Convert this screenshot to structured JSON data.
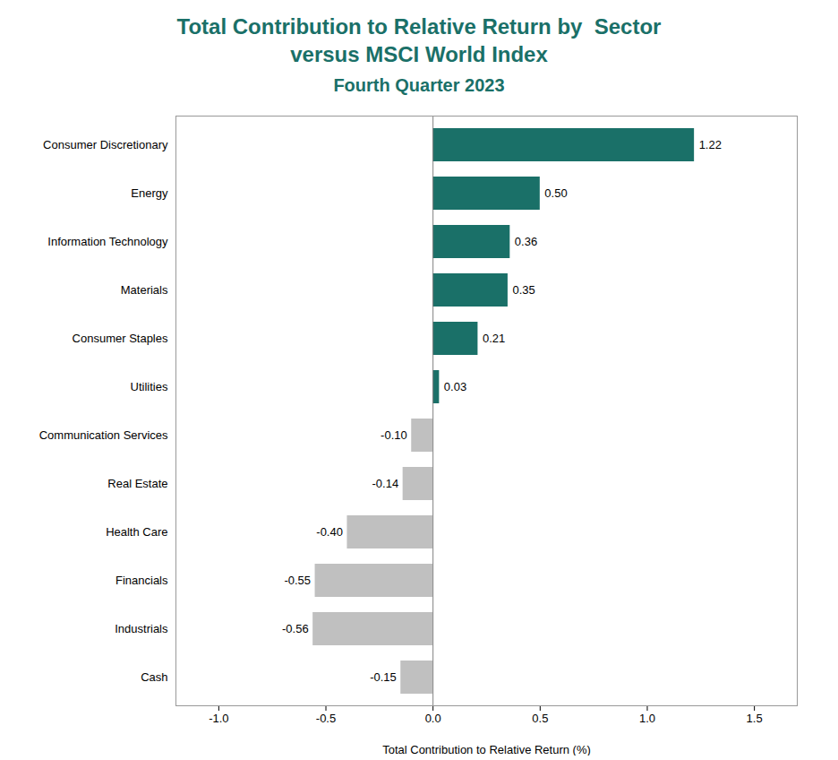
{
  "chart_data": {
    "type": "bar",
    "orientation": "horizontal",
    "title": "Total Contribution to Relative Return by  Sector\nversus MSCI World Index",
    "subtitle": "Fourth Quarter 2023",
    "x_label": "Total Contribution to Relative Return (%)",
    "categories": [
      "Consumer Discretionary",
      "Energy",
      "Information Technology",
      "Materials",
      "Consumer Staples",
      "Utilities",
      "Communication Services",
      "Real Estate",
      "Health Care",
      "Financials",
      "Industrials",
      "Cash"
    ],
    "values": [
      1.22,
      0.5,
      0.36,
      0.35,
      0.21,
      0.03,
      -0.1,
      -0.14,
      -0.4,
      -0.55,
      -0.56,
      -0.15
    ],
    "value_labels": [
      "1.22",
      "0.50",
      "0.36",
      "0.35",
      "0.21",
      "0.03",
      "-0.10",
      "-0.14",
      "-0.40",
      "-0.55",
      "-0.56",
      "-0.15"
    ],
    "data_labels": true,
    "color": "#1a7068",
    "colors": [
      "#1a7068",
      "#1a7068",
      "#1a7068",
      "#1a7068",
      "#1a7068",
      "#1a7068",
      "#c0c0c0",
      "#c0c0c0",
      "#c0c0c0",
      "#c0c0c0",
      "#c0c0c0",
      "#c0c0c0"
    ],
    "xlim": [
      -1.2,
      1.7
    ],
    "xticks": [
      {
        "value": -1.0,
        "label": "-1.0"
      },
      {
        "value": -0.5,
        "label": "-0.5"
      },
      {
        "value": 0,
        "label": "0.0"
      },
      {
        "value": 0.5,
        "label": "0.5"
      },
      {
        "value": 1.0,
        "label": "1.0"
      },
      {
        "value": 1.5,
        "label": "1.5"
      }
    ],
    "grid": false
  }
}
